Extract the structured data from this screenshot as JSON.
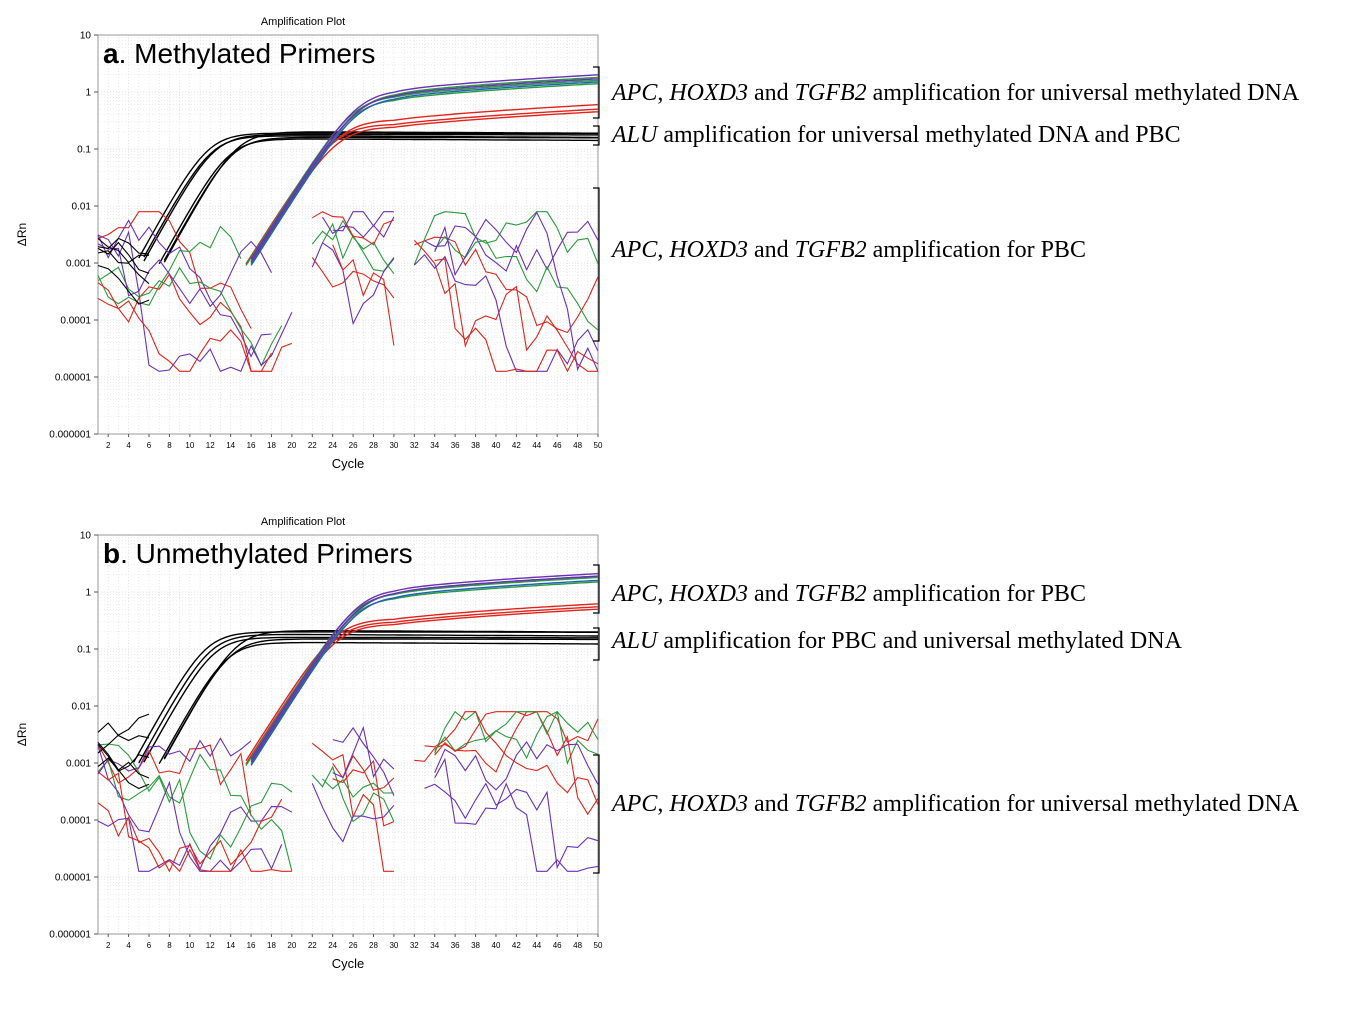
{
  "chart_data": [
    {
      "type": "line",
      "title": "Amplification Plot",
      "panel_letter": "a",
      "panel_title": "Methylated Primers",
      "xlabel": "Cycle",
      "ylabel": "ΔRn",
      "xlim": [
        1,
        50
      ],
      "ylim": [
        1e-06,
        10
      ],
      "yscale": "log",
      "grid": true,
      "x_ticks": [
        "2",
        "4",
        "6",
        "8",
        "10",
        "12",
        "14",
        "16",
        "18",
        "20",
        "22",
        "24",
        "26",
        "28",
        "30",
        "32",
        "34",
        "36",
        "38",
        "40",
        "42",
        "44",
        "46",
        "48",
        "50"
      ],
      "y_ticks": [
        "0.000001",
        "0.00001",
        "0.0001",
        "0.001",
        "0.01",
        "0.1",
        "1",
        "10"
      ],
      "annotations": [
        {
          "target": [
            "APC",
            "HOXD3",
            "TGFB2"
          ],
          "text": " amplification for universal methylated DNA"
        },
        {
          "target": [
            "ALU"
          ],
          "text": " amplification for universal methylated DNA and PBC"
        },
        {
          "target": [
            "APC",
            "HOXD3",
            "TGFB2"
          ],
          "text": " amplification for PBC"
        }
      ],
      "colors": {
        "ALU": "#000000",
        "APC": "#e0241b",
        "HOXD3": "#2a9a3c",
        "TGFB2": "#6a2fb8",
        "TGFB2_alt": "#1f5fbf"
      },
      "curves": {
        "ALU": {
          "ct_cycles": [
            11.8,
            12.1,
            12.4,
            13.8,
            14.2,
            14.6
          ],
          "plateau": [
            0.19,
            0.17,
            0.18,
            0.15,
            0.16,
            0.2
          ]
        },
        "APC": {
          "ct_cycles": [
            23.6,
            23.8,
            24.0
          ],
          "plateau": [
            0.5,
            0.6,
            0.45
          ]
        },
        "HOXD3": {
          "ct_cycles": [
            23.7,
            23.9,
            24.1
          ],
          "plateau": [
            1.6,
            1.4,
            1.8
          ]
        },
        "TGFB2": {
          "ct_cycles": [
            23.8,
            24.0,
            24.2
          ],
          "plateau": [
            2.0,
            1.7,
            1.5
          ]
        }
      }
    },
    {
      "type": "line",
      "title": "Amplification Plot",
      "panel_letter": "b",
      "panel_title": "Unmethylated Primers",
      "xlabel": "Cycle",
      "ylabel": "ΔRn",
      "xlim": [
        1,
        50
      ],
      "ylim": [
        1e-06,
        10
      ],
      "yscale": "log",
      "grid": true,
      "x_ticks": [
        "2",
        "4",
        "6",
        "8",
        "10",
        "12",
        "14",
        "16",
        "18",
        "20",
        "22",
        "24",
        "26",
        "28",
        "30",
        "32",
        "34",
        "36",
        "38",
        "40",
        "42",
        "44",
        "46",
        "48",
        "50"
      ],
      "y_ticks": [
        "0.000001",
        "0.00001",
        "0.0001",
        "0.001",
        "0.01",
        "0.1",
        "1",
        "10"
      ],
      "annotations": [
        {
          "target": [
            "APC",
            "HOXD3",
            "TGFB2"
          ],
          "text": " amplification for PBC"
        },
        {
          "target": [
            "ALU"
          ],
          "text": " amplification for PBC and universal methylated DNA"
        },
        {
          "target": [
            "APC",
            "HOXD3",
            "TGFB2"
          ],
          "text": " amplification for universal methylated DNA"
        }
      ],
      "colors": {
        "ALU": "#000000",
        "APC": "#e0241b",
        "HOXD3": "#2a9a3c",
        "TGFB2": "#6a2fb8",
        "TGFB2_alt": "#1f5fbf"
      },
      "curves": {
        "ALU": {
          "ct_cycles": [
            11.6,
            12.0,
            12.3,
            13.6,
            14.0,
            14.5
          ],
          "plateau": [
            0.2,
            0.18,
            0.16,
            0.13,
            0.15,
            0.21
          ]
        },
        "APC": {
          "ct_cycles": [
            23.4,
            23.6,
            23.8
          ],
          "plateau": [
            0.62,
            0.55,
            0.5
          ]
        },
        "HOXD3": {
          "ct_cycles": [
            23.7,
            23.9,
            24.1
          ],
          "plateau": [
            1.8,
            1.5,
            1.9
          ]
        },
        "TGFB2": {
          "ct_cycles": [
            23.8,
            24.0,
            24.2
          ],
          "plateau": [
            2.1,
            1.9,
            1.6
          ]
        }
      }
    }
  ]
}
